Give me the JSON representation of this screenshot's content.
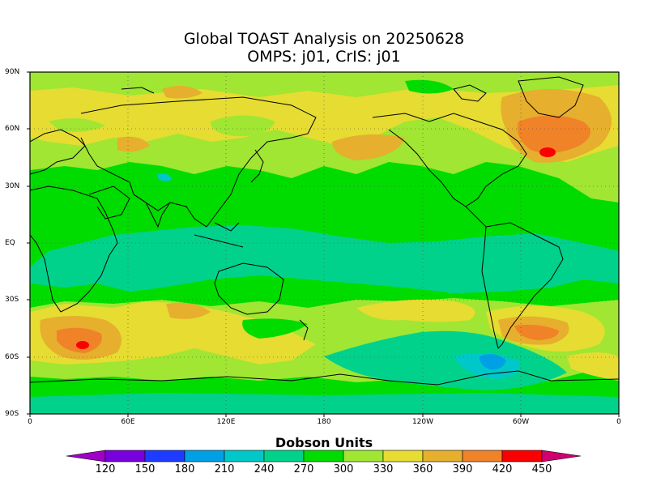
{
  "title_line1": "Global TOAST Analysis on 20250628",
  "title_line2": "OMPS: j01, CrIS: j01",
  "lat_labels": [
    "90N",
    "60N",
    "30N",
    "EQ",
    "30S",
    "60S",
    "90S"
  ],
  "lon_labels": [
    "0",
    "60E",
    "120E",
    "180",
    "120W",
    "60W",
    "0"
  ],
  "colorbar": {
    "title": "Dobson Units",
    "levels": [
      "120",
      "150",
      "180",
      "210",
      "240",
      "270",
      "300",
      "330",
      "360",
      "390",
      "420",
      "450"
    ],
    "colors": [
      "#a000c8",
      "#7700dd",
      "#1e3cff",
      "#00a0e6",
      "#00c8c8",
      "#00d28c",
      "#00dc00",
      "#a0e632",
      "#e6dc32",
      "#e6af2d",
      "#f08228",
      "#fa0000",
      "#d2006e"
    ]
  },
  "map_colors": {
    "c270": "#00d28c",
    "c300": "#00dc00",
    "c330": "#a0e632",
    "c360": "#e6dc32",
    "c390": "#e6af2d",
    "c420": "#f08228",
    "c450": "#fa0000",
    "c240": "#00c8c8",
    "c210": "#00a0e6"
  }
}
